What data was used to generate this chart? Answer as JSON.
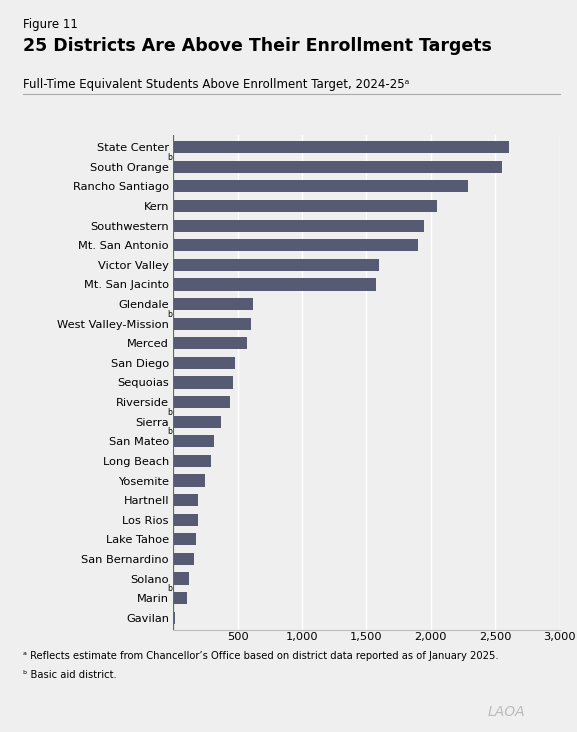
{
  "figure_label": "Figure 11",
  "title": "25 Districts Are Above Their Enrollment Targets",
  "subtitle": "Full-Time Equivalent Students Above Enrollment Target, 2024-25ᵃ",
  "bar_color": "#565b73",
  "background_color": "#efefef",
  "xlim": [
    0,
    3000
  ],
  "xticks": [
    0,
    500,
    1000,
    1500,
    2000,
    2500,
    3000
  ],
  "xtick_labels": [
    "",
    "500",
    "1,000",
    "1,500",
    "2,000",
    "2,500",
    "3,000"
  ],
  "footnote_a": "ᵃ Reflects estimate from Chancellor’s Office based on district data reported as of January 2025.",
  "footnote_b": "ᵇ Basic aid district.",
  "watermark": "LAOA",
  "districts": [
    {
      "name": "State Center",
      "value": 2610,
      "superscript": ""
    },
    {
      "name": "South Orange",
      "value": 2555,
      "superscript": "b"
    },
    {
      "name": "Rancho Santiago",
      "value": 2290,
      "superscript": ""
    },
    {
      "name": "Kern",
      "value": 2050,
      "superscript": ""
    },
    {
      "name": "Southwestern",
      "value": 1950,
      "superscript": ""
    },
    {
      "name": "Mt. San Antonio",
      "value": 1900,
      "superscript": ""
    },
    {
      "name": "Victor Valley",
      "value": 1600,
      "superscript": ""
    },
    {
      "name": "Mt. San Jacinto",
      "value": 1575,
      "superscript": ""
    },
    {
      "name": "Glendale",
      "value": 620,
      "superscript": ""
    },
    {
      "name": "West Valley-Mission",
      "value": 605,
      "superscript": "b"
    },
    {
      "name": "Merced",
      "value": 575,
      "superscript": ""
    },
    {
      "name": "San Diego",
      "value": 480,
      "superscript": ""
    },
    {
      "name": "Sequoias",
      "value": 465,
      "superscript": ""
    },
    {
      "name": "Riverside",
      "value": 445,
      "superscript": ""
    },
    {
      "name": "Sierra",
      "value": 375,
      "superscript": "b"
    },
    {
      "name": "San Mateo",
      "value": 315,
      "superscript": "b"
    },
    {
      "name": "Long Beach",
      "value": 295,
      "superscript": ""
    },
    {
      "name": "Yosemite",
      "value": 245,
      "superscript": ""
    },
    {
      "name": "Hartnell",
      "value": 195,
      "superscript": ""
    },
    {
      "name": "Los Rios",
      "value": 190,
      "superscript": ""
    },
    {
      "name": "Lake Tahoe",
      "value": 180,
      "superscript": ""
    },
    {
      "name": "San Bernardino",
      "value": 165,
      "superscript": ""
    },
    {
      "name": "Solano",
      "value": 125,
      "superscript": ""
    },
    {
      "name": "Marin",
      "value": 105,
      "superscript": "b"
    },
    {
      "name": "Gavilan",
      "value": 12,
      "superscript": ""
    }
  ]
}
